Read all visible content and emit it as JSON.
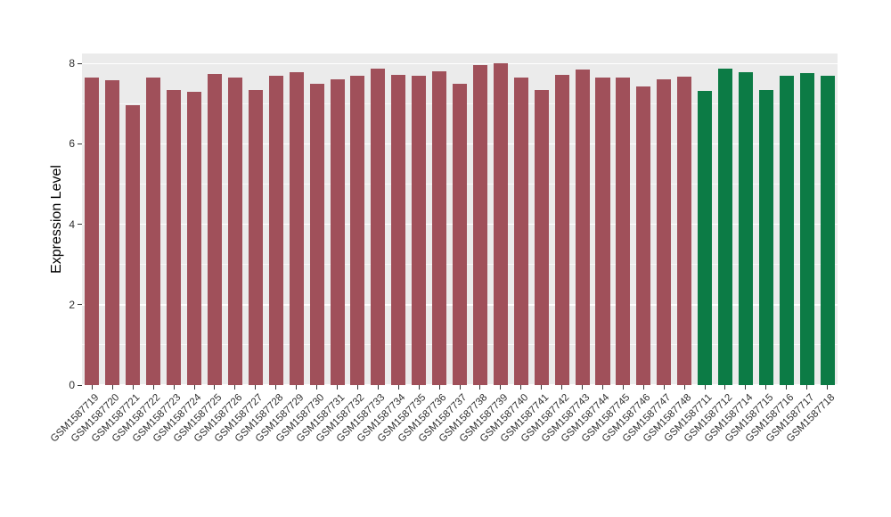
{
  "figure": {
    "background": "#ffffff",
    "panel_background": "#EBEBEB",
    "grid_color": "#ffffff",
    "axis_text_color": "#303030"
  },
  "chart_data": {
    "type": "bar",
    "title": "",
    "xlabel": "",
    "ylabel": "Expression Level",
    "ylim": [
      0,
      8.25
    ],
    "yticks": [
      0,
      2,
      4,
      6,
      8
    ],
    "yticks_minor": [
      1,
      3,
      5,
      7
    ],
    "grid": true,
    "legend": false,
    "x_label_angle": 45,
    "series": [
      {
        "name": "group-maroon",
        "color": "#A0505A",
        "categories": [
          "GSM1587719",
          "GSM1587720",
          "GSM1587721",
          "GSM1587722",
          "GSM1587723",
          "GSM1587724",
          "GSM1587725",
          "GSM1587726",
          "GSM1587727",
          "GSM1587728",
          "GSM1587729",
          "GSM1587730",
          "GSM1587731",
          "GSM1587732",
          "GSM1587733",
          "GSM1587734",
          "GSM1587735",
          "GSM1587736",
          "GSM1587737",
          "GSM1587738",
          "GSM1587739",
          "GSM1587740",
          "GSM1587741",
          "GSM1587742",
          "GSM1587743",
          "GSM1587744",
          "GSM1587745",
          "GSM1587746",
          "GSM1587747",
          "GSM1587748"
        ],
        "values": [
          7.65,
          7.58,
          6.97,
          7.65,
          7.33,
          7.29,
          7.74,
          7.65,
          7.35,
          7.69,
          7.78,
          7.49,
          7.6,
          7.69,
          7.87,
          7.71,
          7.69,
          7.8,
          7.49,
          7.96,
          8.01,
          7.65,
          7.33,
          7.71,
          7.85,
          7.65,
          7.65,
          7.42,
          7.6,
          7.67
        ]
      },
      {
        "name": "group-green",
        "color": "#0C7B45",
        "categories": [
          "GSM1587711",
          "GSM1587712",
          "GSM1587714",
          "GSM1587715",
          "GSM1587716",
          "GSM1587717",
          "GSM1587718"
        ],
        "values": [
          7.31,
          7.87,
          7.78,
          7.33,
          7.69,
          7.76,
          7.7
        ]
      }
    ]
  }
}
